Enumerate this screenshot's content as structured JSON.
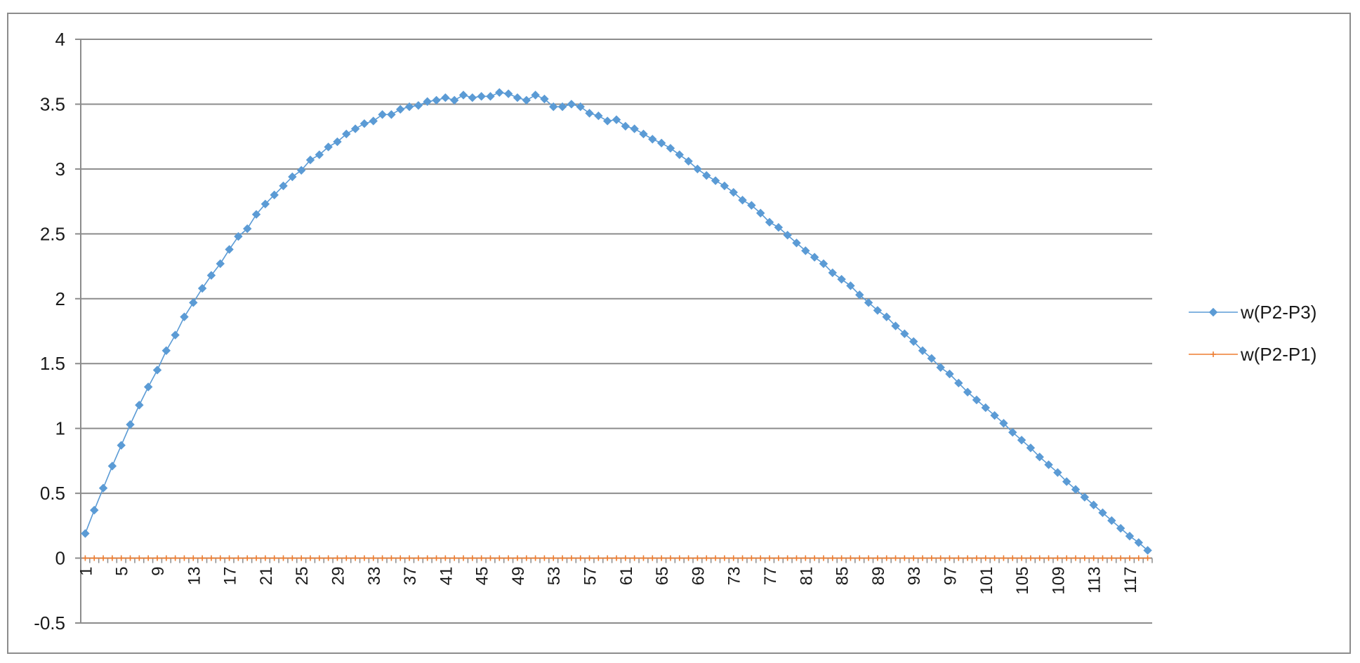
{
  "chart_data": {
    "type": "line",
    "title": "",
    "xlabel": "",
    "ylabel": "",
    "ylim": [
      -0.5,
      4
    ],
    "y_ticks": [
      "-0.5",
      "0",
      "0.5",
      "1",
      "1.5",
      "2",
      "2.5",
      "3",
      "3.5",
      "4"
    ],
    "x_tick_labels": [
      "1",
      "5",
      "9",
      "13",
      "17",
      "21",
      "25",
      "29",
      "33",
      "37",
      "41",
      "45",
      "49",
      "53",
      "57",
      "61",
      "65",
      "69",
      "73",
      "77",
      "81",
      "85",
      "89",
      "93",
      "97",
      "101",
      "105",
      "109",
      "113",
      "117"
    ],
    "grid": "horizontal",
    "legend_position": "right",
    "x": [
      1,
      2,
      3,
      4,
      5,
      6,
      7,
      8,
      9,
      10,
      11,
      12,
      13,
      14,
      15,
      16,
      17,
      18,
      19,
      20,
      21,
      22,
      23,
      24,
      25,
      26,
      27,
      28,
      29,
      30,
      31,
      32,
      33,
      34,
      35,
      36,
      37,
      38,
      39,
      40,
      41,
      42,
      43,
      44,
      45,
      46,
      47,
      48,
      49,
      50,
      51,
      52,
      53,
      54,
      55,
      56,
      57,
      58,
      59,
      60,
      61,
      62,
      63,
      64,
      65,
      66,
      67,
      68,
      69,
      70,
      71,
      72,
      73,
      74,
      75,
      76,
      77,
      78,
      79,
      80,
      81,
      82,
      83,
      84,
      85,
      86,
      87,
      88,
      89,
      90,
      91,
      92,
      93,
      94,
      95,
      96,
      97,
      98,
      99,
      100,
      101,
      102,
      103,
      104,
      105,
      106,
      107,
      108,
      109,
      110,
      111,
      112,
      113,
      114,
      115,
      116,
      117,
      118,
      119
    ],
    "series": [
      {
        "name": "w(P2-P3)",
        "color": "#5b9bd5",
        "marker": "diamond",
        "values": [
          0.19,
          0.37,
          0.54,
          0.71,
          0.87,
          1.03,
          1.18,
          1.32,
          1.45,
          1.6,
          1.72,
          1.86,
          1.97,
          2.08,
          2.18,
          2.27,
          2.38,
          2.48,
          2.54,
          2.65,
          2.73,
          2.8,
          2.87,
          2.94,
          2.99,
          3.07,
          3.11,
          3.17,
          3.21,
          3.27,
          3.31,
          3.35,
          3.37,
          3.42,
          3.42,
          3.46,
          3.48,
          3.49,
          3.52,
          3.53,
          3.55,
          3.53,
          3.57,
          3.55,
          3.56,
          3.56,
          3.59,
          3.58,
          3.55,
          3.53,
          3.57,
          3.54,
          3.48,
          3.48,
          3.5,
          3.48,
          3.43,
          3.41,
          3.37,
          3.38,
          3.33,
          3.31,
          3.27,
          3.23,
          3.2,
          3.16,
          3.11,
          3.06,
          3.0,
          2.95,
          2.91,
          2.87,
          2.82,
          2.76,
          2.72,
          2.66,
          2.59,
          2.55,
          2.49,
          2.43,
          2.37,
          2.32,
          2.27,
          2.2,
          2.15,
          2.1,
          2.03,
          1.97,
          1.91,
          1.86,
          1.79,
          1.73,
          1.67,
          1.6,
          1.54,
          1.47,
          1.42,
          1.35,
          1.28,
          1.22,
          1.16,
          1.1,
          1.04,
          0.97,
          0.91,
          0.85,
          0.78,
          0.72,
          0.66,
          0.59,
          0.53,
          0.47,
          0.41,
          0.35,
          0.29,
          0.23,
          0.17,
          0.12,
          0.06
        ]
      },
      {
        "name": "w(P2-P1)",
        "color": "#ed7d31",
        "marker": "plus",
        "values": [
          0,
          0,
          0,
          0,
          0,
          0,
          0,
          0,
          0,
          0,
          0,
          0,
          0,
          0,
          0,
          0,
          0,
          0,
          0,
          0,
          0,
          0,
          0,
          0,
          0,
          0,
          0,
          0,
          0,
          0,
          0,
          0,
          0,
          0,
          0,
          0,
          0,
          0,
          0,
          0,
          0,
          0,
          0,
          0,
          0,
          0,
          0,
          0,
          0,
          0,
          0,
          0,
          0,
          0,
          0,
          0,
          0,
          0,
          0,
          0,
          0,
          0,
          0,
          0,
          0,
          0,
          0,
          0,
          0,
          0,
          0,
          0,
          0,
          0,
          0,
          0,
          0,
          0,
          0,
          0,
          0,
          0,
          0,
          0,
          0,
          0,
          0,
          0,
          0,
          0,
          0,
          0,
          0,
          0,
          0,
          0,
          0,
          0,
          0,
          0,
          0,
          0,
          0,
          0,
          0,
          0,
          0,
          0,
          0,
          0,
          0,
          0,
          0,
          0,
          0,
          0,
          0,
          0,
          0
        ]
      }
    ]
  }
}
